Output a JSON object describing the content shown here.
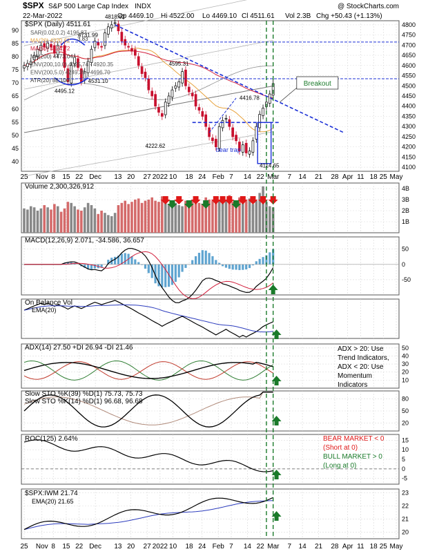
{
  "header": {
    "symbol": "$SPX",
    "name": "S&P 500 Large Cap Index",
    "exchange": "INDX",
    "date": "22-Mar-2022",
    "open": "Op 4469.10",
    "high": "Hi 4522.00",
    "low": "Lo 4469.10",
    "close": "Cl 4511.61",
    "vol": "Vol 2.3B",
    "chg": "Chg +50.43 (+1.13%)",
    "watermark": "@ StockCharts.com"
  },
  "x_axis": {
    "labels_top": [
      "25",
      "Nov",
      "8",
      "15",
      "22",
      "Dec",
      "13",
      "20",
      "27",
      "2022",
      "10",
      "18",
      "24",
      "Feb",
      "7",
      "14",
      "22",
      "Mar",
      "7",
      "14",
      "21",
      "28",
      "Apr",
      "11",
      "18",
      "25",
      "May"
    ],
    "labels_bottom": [
      "25",
      "Nov",
      "8",
      "15",
      "22",
      "Dec",
      "13",
      "20",
      "27",
      "2022",
      "10",
      "18",
      "24",
      "Feb",
      "7",
      "14",
      "22",
      "Mar",
      "7",
      "14",
      "21",
      "28",
      "Apr",
      "11",
      "18",
      "25",
      "May"
    ]
  },
  "chart_data": [
    {
      "type": "candlestick",
      "panel": "price",
      "title": "$SPX (Daily) 4511.61",
      "legend": [
        "SAR(0.02,0.2) 4196.87",
        "MA(20) 4320.62",
        "MA(50) 4424.72",
        "MA(200) 4473.04",
        "ENV(200,10.0) 4025.74 - 4920.35",
        "ENV(200,5.0) 4249.39 - 4696.70",
        "ATR(20) 88.100"
      ],
      "legend_extra": "3.83",
      "y_right": [
        "4800",
        "4750",
        "4700",
        "4650",
        "4600",
        "4550",
        "4500",
        "4450",
        "4400",
        "4350",
        "4300",
        "4250",
        "4200",
        "4150",
        "4100"
      ],
      "y_left": [
        "90",
        "85",
        "80",
        "75",
        "70",
        "65",
        "60",
        "55",
        "50",
        "45",
        "40"
      ],
      "ylim": [
        4080,
        4820
      ],
      "closes": [
        4600,
        4610,
        4620,
        4650,
        4680,
        4700,
        4690,
        4710,
        4690,
        4660,
        4700,
        4690,
        4590,
        4520,
        4600,
        4640,
        4590,
        4520,
        4570,
        4620,
        4680,
        4720,
        4700,
        4690,
        4760,
        4790,
        4800,
        4810,
        4770,
        4720,
        4700,
        4690,
        4670,
        4650,
        4600,
        4560,
        4540,
        4480,
        4450,
        4400,
        4370,
        4350,
        4420,
        4450,
        4480,
        4500,
        4520,
        4570,
        4500,
        4470,
        4450,
        4400,
        4380,
        4350,
        4300,
        4250,
        4230,
        4200,
        4300,
        4330,
        4340,
        4300,
        4250,
        4230,
        4180,
        4210,
        4170,
        4180,
        4230,
        4300,
        4360,
        4390,
        4420,
        4460,
        4511
      ],
      "annotations": [
        {
          "text": "4818.62"
        },
        {
          "text": "4731.99"
        },
        {
          "text": "4495.12"
        },
        {
          "text": "4531.10"
        },
        {
          "text": "4595.31"
        },
        {
          "text": "4416.78"
        },
        {
          "text": "4222.62"
        },
        {
          "text": "4114.65"
        },
        {
          "text": "bear trap"
        },
        {
          "text": "Breakout"
        }
      ]
    },
    {
      "type": "bar",
      "panel": "volume",
      "title": "Volume 2,300,326,912",
      "y_right": [
        "4B",
        "3B",
        "2B",
        "1B"
      ],
      "ylim": [
        0,
        4.5
      ],
      "values": [
        2.2,
        2.1,
        2.4,
        2.3,
        2.0,
        2.2,
        2.5,
        2.3,
        2.1,
        2.6,
        2.4,
        1.9,
        2.2,
        2.8,
        2.7,
        2.4,
        2.1,
        2.0,
        2.3,
        2.7,
        2.5,
        2.2,
        1.7,
        2.0,
        1.8,
        1.6,
        1.5,
        1.8,
        2.5,
        2.7,
        2.9,
        2.6,
        2.8,
        3.0,
        3.1,
        2.7,
        2.9,
        3.0,
        3.2,
        2.9,
        2.8,
        3.3,
        3.0,
        2.6,
        2.5,
        2.7,
        2.5,
        2.4,
        2.9,
        2.8,
        3.0,
        2.9,
        2.7,
        2.6,
        3.2,
        3.0,
        2.9,
        3.1,
        3.0,
        2.8,
        3.0,
        3.4,
        2.8,
        2.9,
        3.2,
        3.0,
        2.9,
        3.1,
        2.6,
        2.9,
        3.6,
        4.2,
        2.8,
        2.4,
        2.3
      ]
    },
    {
      "type": "line",
      "panel": "macd",
      "title": "MACD(12,26,9) 2.071, -34.586, 36.657",
      "y_right": [
        "50",
        "0",
        "-50"
      ],
      "ylim": [
        -100,
        90
      ]
    },
    {
      "type": "line",
      "panel": "obv",
      "title": "On Balance Vol",
      "legend": [
        "EMA(20)"
      ]
    },
    {
      "type": "line",
      "panel": "adx",
      "title": "ADX(14) 27.50 +DI 26.94 -DI 21.46",
      "y_right": [
        "50",
        "40",
        "30",
        "20",
        "10"
      ],
      "ylim": [
        0,
        55
      ],
      "note": "ADX > 20: Use Trend Indicators, ADX < 20: Use Momentum Indicators"
    },
    {
      "type": "line",
      "panel": "sto",
      "title": "Slow STO %K(39) %D(1) 75.73, 75.73",
      "title2": "Slow STO %K(14) %D(1) 96.68, 96.68",
      "y_right": [
        "80",
        "50",
        "20"
      ],
      "ylim": [
        0,
        100
      ]
    },
    {
      "type": "line",
      "panel": "roc",
      "title": "ROC(125) 2.64%",
      "y_right": [
        "15",
        "10",
        "5",
        "0",
        "-5"
      ],
      "ylim": [
        -8,
        18
      ],
      "note_bear": "BEAR MARKET < 0 (Short at 0)",
      "note_bull": "BULL MARKET > 0 (Long at 0)"
    },
    {
      "type": "line",
      "panel": "ratio",
      "title": "$SPX:IWM 21.74",
      "legend": [
        "EMA(20) 21.65"
      ],
      "y_right": [
        "23",
        "22",
        "21",
        "20"
      ],
      "ylim": [
        19.5,
        23.3
      ]
    }
  ],
  "text": {
    "adx_note_1": "ADX > 20: Use",
    "adx_note_2": "Trend Indicators,",
    "adx_note_3": "ADX < 20: Use",
    "adx_note_4": "Momentum",
    "adx_note_5": "Indicators",
    "bear_1": "BEAR MARKET < 0",
    "bear_2": "(Short at 0)",
    "bull_1": "BULL MARKET > 0",
    "bull_2": "(Long at 0)"
  },
  "colors": {
    "up": "#000000",
    "down": "#c8102e",
    "ma20": "#e8a33d",
    "ma50": "#d21f3c",
    "ma200": "#777777",
    "trend": "#1a2fd6",
    "green": "#1a7a2a",
    "red": "#e01818"
  }
}
